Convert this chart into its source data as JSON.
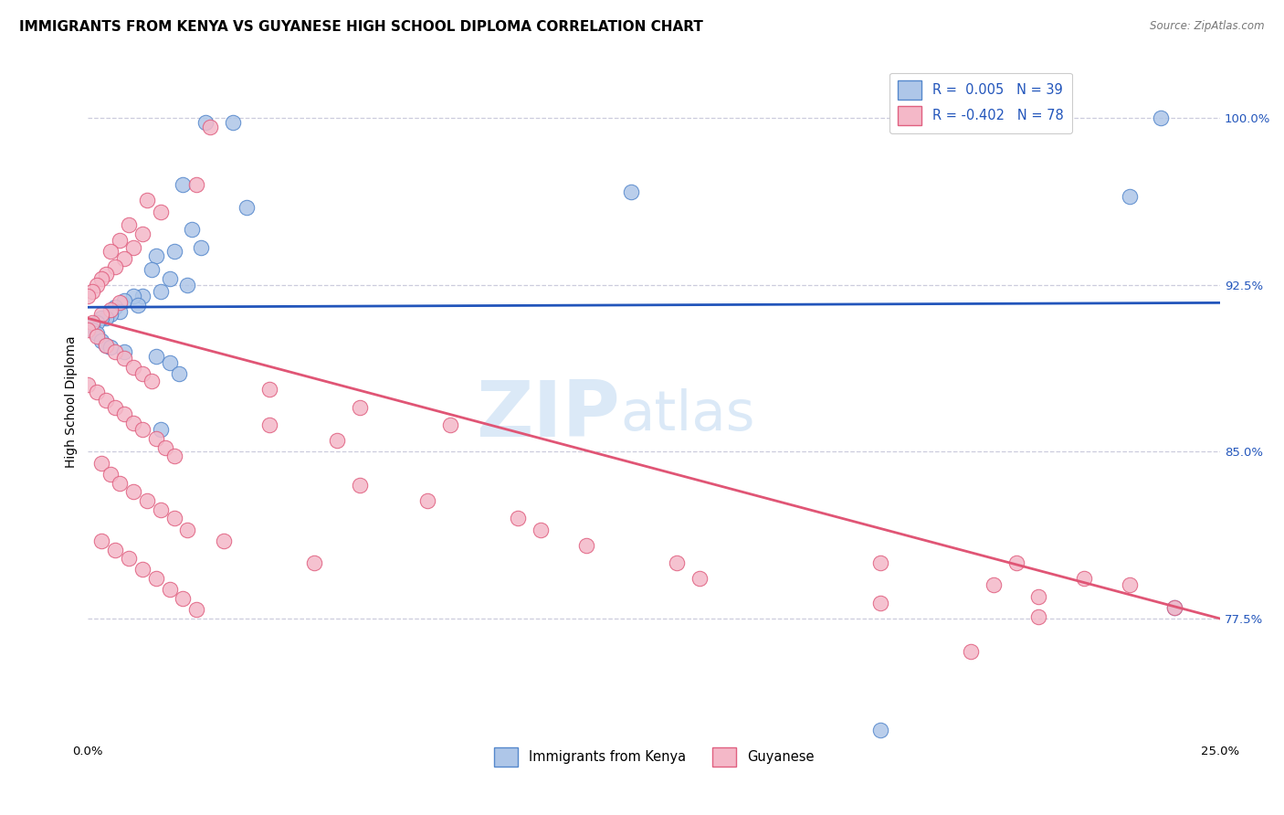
{
  "title": "IMMIGRANTS FROM KENYA VS GUYANESE HIGH SCHOOL DIPLOMA CORRELATION CHART",
  "source": "Source: ZipAtlas.com",
  "ylabel": "High School Diploma",
  "yticks": [
    77.5,
    85.0,
    92.5,
    100.0
  ],
  "xlim": [
    0.0,
    0.25
  ],
  "ylim": [
    0.72,
    1.025
  ],
  "legend_r_color": "#2255bb",
  "kenya_color": "#aec6e8",
  "kenya_edge_color": "#5588cc",
  "kenya_line_color": "#2255bb",
  "guyanese_color": "#f4b8c8",
  "guyanese_edge_color": "#e06080",
  "guyanese_line_color": "#e05575",
  "kenya_line": [
    0.0,
    0.915,
    0.25,
    0.917
  ],
  "guyanese_line": [
    0.0,
    0.91,
    0.25,
    0.775
  ],
  "kenya_points": [
    [
      0.032,
      0.998
    ],
    [
      0.026,
      0.998
    ],
    [
      0.021,
      0.97
    ],
    [
      0.12,
      0.967
    ],
    [
      0.035,
      0.96
    ],
    [
      0.023,
      0.95
    ],
    [
      0.025,
      0.942
    ],
    [
      0.019,
      0.94
    ],
    [
      0.015,
      0.938
    ],
    [
      0.014,
      0.932
    ],
    [
      0.018,
      0.928
    ],
    [
      0.022,
      0.925
    ],
    [
      0.016,
      0.922
    ],
    [
      0.012,
      0.92
    ],
    [
      0.01,
      0.92
    ],
    [
      0.008,
      0.918
    ],
    [
      0.011,
      0.916
    ],
    [
      0.006,
      0.915
    ],
    [
      0.007,
      0.913
    ],
    [
      0.005,
      0.912
    ],
    [
      0.004,
      0.91
    ],
    [
      0.003,
      0.91
    ],
    [
      0.002,
      0.908
    ],
    [
      0.001,
      0.907
    ],
    [
      0.001,
      0.905
    ],
    [
      0.002,
      0.903
    ],
    [
      0.003,
      0.9
    ],
    [
      0.004,
      0.898
    ],
    [
      0.005,
      0.897
    ],
    [
      0.008,
      0.895
    ],
    [
      0.015,
      0.893
    ],
    [
      0.018,
      0.89
    ],
    [
      0.02,
      0.885
    ],
    [
      0.016,
      0.86
    ],
    [
      0.237,
      1.0
    ],
    [
      0.23,
      0.965
    ],
    [
      0.24,
      0.78
    ],
    [
      0.175,
      0.725
    ]
  ],
  "guyanese_points": [
    [
      0.027,
      0.996
    ],
    [
      0.024,
      0.97
    ],
    [
      0.013,
      0.963
    ],
    [
      0.016,
      0.958
    ],
    [
      0.009,
      0.952
    ],
    [
      0.012,
      0.948
    ],
    [
      0.007,
      0.945
    ],
    [
      0.01,
      0.942
    ],
    [
      0.005,
      0.94
    ],
    [
      0.008,
      0.937
    ],
    [
      0.006,
      0.933
    ],
    [
      0.004,
      0.93
    ],
    [
      0.003,
      0.928
    ],
    [
      0.002,
      0.925
    ],
    [
      0.001,
      0.922
    ],
    [
      0.0,
      0.92
    ],
    [
      0.007,
      0.917
    ],
    [
      0.005,
      0.914
    ],
    [
      0.003,
      0.912
    ],
    [
      0.001,
      0.908
    ],
    [
      0.0,
      0.905
    ],
    [
      0.002,
      0.902
    ],
    [
      0.004,
      0.898
    ],
    [
      0.006,
      0.895
    ],
    [
      0.008,
      0.892
    ],
    [
      0.01,
      0.888
    ],
    [
      0.012,
      0.885
    ],
    [
      0.014,
      0.882
    ],
    [
      0.0,
      0.88
    ],
    [
      0.002,
      0.877
    ],
    [
      0.004,
      0.873
    ],
    [
      0.006,
      0.87
    ],
    [
      0.008,
      0.867
    ],
    [
      0.01,
      0.863
    ],
    [
      0.012,
      0.86
    ],
    [
      0.015,
      0.856
    ],
    [
      0.017,
      0.852
    ],
    [
      0.019,
      0.848
    ],
    [
      0.003,
      0.845
    ],
    [
      0.005,
      0.84
    ],
    [
      0.007,
      0.836
    ],
    [
      0.01,
      0.832
    ],
    [
      0.013,
      0.828
    ],
    [
      0.016,
      0.824
    ],
    [
      0.019,
      0.82
    ],
    [
      0.022,
      0.815
    ],
    [
      0.003,
      0.81
    ],
    [
      0.006,
      0.806
    ],
    [
      0.009,
      0.802
    ],
    [
      0.012,
      0.797
    ],
    [
      0.015,
      0.793
    ],
    [
      0.018,
      0.788
    ],
    [
      0.021,
      0.784
    ],
    [
      0.024,
      0.779
    ],
    [
      0.03,
      0.81
    ],
    [
      0.05,
      0.8
    ],
    [
      0.06,
      0.835
    ],
    [
      0.075,
      0.828
    ],
    [
      0.095,
      0.82
    ],
    [
      0.1,
      0.815
    ],
    [
      0.11,
      0.808
    ],
    [
      0.13,
      0.8
    ],
    [
      0.04,
      0.862
    ],
    [
      0.055,
      0.855
    ],
    [
      0.135,
      0.793
    ],
    [
      0.04,
      0.878
    ],
    [
      0.06,
      0.87
    ],
    [
      0.08,
      0.862
    ],
    [
      0.2,
      0.79
    ],
    [
      0.21,
      0.785
    ],
    [
      0.175,
      0.8
    ],
    [
      0.205,
      0.8
    ],
    [
      0.22,
      0.793
    ],
    [
      0.23,
      0.79
    ],
    [
      0.175,
      0.782
    ],
    [
      0.21,
      0.776
    ],
    [
      0.195,
      0.76
    ],
    [
      0.24,
      0.78
    ]
  ],
  "grid_color": "#ccccdd",
  "background_color": "#ffffff",
  "title_fontsize": 11,
  "axis_label_fontsize": 10,
  "tick_fontsize": 9.5
}
